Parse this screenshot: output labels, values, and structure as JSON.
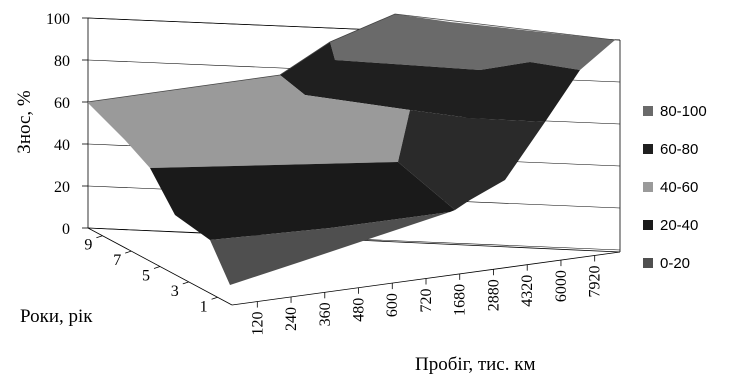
{
  "chart_data": {
    "type": "surface",
    "title": "",
    "zlabel": "Знос, %",
    "xlabel": "Пробіг, тис. км",
    "ylabel": "Роки, рік",
    "zlim": [
      0,
      100
    ],
    "z_ticks": [
      "0",
      "20",
      "40",
      "60",
      "80",
      "100"
    ],
    "x_categories": [
      "120",
      "240",
      "360",
      "480",
      "600",
      "720",
      "1680",
      "2880",
      "4320",
      "6000",
      "7920"
    ],
    "y_tick_labels": [
      "1",
      "3",
      "5",
      "7",
      "9"
    ],
    "legend_position": "right",
    "legend": [
      {
        "label": "80-100",
        "color": "#6a6a6a"
      },
      {
        "label": "60-80",
        "color": "#1f1f1f"
      },
      {
        "label": "40-60",
        "color": "#9a9a9a"
      },
      {
        "label": "20-40",
        "color": "#1a1a1a"
      },
      {
        "label": "0-20",
        "color": "#4f4f4f"
      }
    ]
  }
}
